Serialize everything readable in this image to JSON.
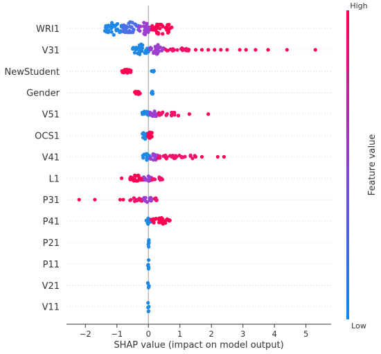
{
  "chart_data": {
    "type": "scatter",
    "subtype": "shap-beeswarm",
    "title": "",
    "xlabel": "SHAP value (impact on model output)",
    "xlim": [
      -2.6,
      5.8
    ],
    "xticks": [
      -2,
      -1,
      0,
      1,
      2,
      3,
      4,
      5
    ],
    "colorbar": {
      "label": "Feature value",
      "high_label": "High",
      "low_label": "Low",
      "high_color": "#ff0052",
      "low_color": "#008bfb"
    },
    "features": [
      {
        "name": "WRI1",
        "spread": 1.0,
        "groups": [
          {
            "min": -1.4,
            "max": -0.8,
            "color": "low"
          },
          {
            "min": -0.8,
            "max": -0.3,
            "color": "mid-low"
          },
          {
            "min": -0.3,
            "max": 0.1,
            "color": "mid"
          },
          {
            "min": 0.1,
            "max": 0.75,
            "color": "high"
          }
        ],
        "outliers": []
      },
      {
        "name": "V31",
        "spread": 0.8,
        "groups": [
          {
            "min": -0.5,
            "max": 0.05,
            "color": "low"
          },
          {
            "min": 0.05,
            "max": 0.5,
            "color": "mid"
          },
          {
            "min": 0.5,
            "max": 1.3,
            "color": "high-thin"
          }
        ],
        "outliers": [
          1.5,
          1.7,
          1.9,
          2.1,
          2.3,
          2.5,
          2.9,
          3.1,
          3.4,
          3.8,
          4.4,
          5.3
        ]
      },
      {
        "name": "NewStudent",
        "spread": 0.3,
        "groups": [
          {
            "min": -0.85,
            "max": -0.55,
            "color": "high"
          },
          {
            "min": 0.1,
            "max": 0.18,
            "color": "low"
          }
        ],
        "outliers": []
      },
      {
        "name": "Gender",
        "spread": 0.3,
        "groups": [
          {
            "min": -0.45,
            "max": -0.25,
            "color": "high"
          },
          {
            "min": 0.08,
            "max": 0.15,
            "color": "low"
          }
        ],
        "outliers": []
      },
      {
        "name": "V51",
        "spread": 0.55,
        "groups": [
          {
            "min": -0.2,
            "max": 0.05,
            "color": "low"
          },
          {
            "min": 0.05,
            "max": 0.3,
            "color": "mid"
          },
          {
            "min": 0.3,
            "max": 1.0,
            "color": "high-thin"
          }
        ],
        "outliers": [
          1.3,
          1.9
        ]
      },
      {
        "name": "OCS1",
        "spread": 0.6,
        "groups": [
          {
            "min": -0.2,
            "max": -0.02,
            "color": "low"
          },
          {
            "min": -0.02,
            "max": 0.15,
            "color": "high"
          }
        ],
        "outliers": []
      },
      {
        "name": "V41",
        "spread": 0.6,
        "groups": [
          {
            "min": -0.2,
            "max": 0.05,
            "color": "low"
          },
          {
            "min": 0.05,
            "max": 0.3,
            "color": "mid"
          },
          {
            "min": 0.3,
            "max": 1.5,
            "color": "high-thin"
          }
        ],
        "outliers": [
          1.5,
          1.7,
          2.2,
          2.4
        ]
      },
      {
        "name": "L1",
        "spread": 0.5,
        "groups": [
          {
            "min": -0.6,
            "max": -0.15,
            "color": "high"
          },
          {
            "min": -0.15,
            "max": 0.1,
            "color": "mid"
          },
          {
            "min": 0.1,
            "max": 0.45,
            "color": "high-thin"
          }
        ],
        "outliers": [
          -0.85
        ]
      },
      {
        "name": "P31",
        "spread": 0.55,
        "groups": [
          {
            "min": -0.6,
            "max": -0.15,
            "color": "high-thin"
          },
          {
            "min": -0.15,
            "max": 0.1,
            "color": "mid"
          },
          {
            "min": 0.1,
            "max": 0.3,
            "color": "high-thin"
          }
        ],
        "outliers": [
          -2.2,
          -1.7,
          -0.9,
          -0.8
        ]
      },
      {
        "name": "P41",
        "spread": 0.5,
        "groups": [
          {
            "min": -0.08,
            "max": 0.08,
            "color": "low"
          },
          {
            "min": 0.08,
            "max": 0.7,
            "color": "high"
          }
        ],
        "outliers": []
      },
      {
        "name": "P21",
        "spread": 0.9,
        "groups": [
          {
            "min": -0.02,
            "max": 0.02,
            "color": "low"
          }
        ],
        "outliers": []
      },
      {
        "name": "P11",
        "spread": 0.9,
        "groups": [
          {
            "min": -0.02,
            "max": 0.02,
            "color": "low"
          }
        ],
        "outliers": []
      },
      {
        "name": "V21",
        "spread": 0.9,
        "groups": [
          {
            "min": -0.02,
            "max": 0.02,
            "color": "low"
          }
        ],
        "outliers": []
      },
      {
        "name": "V11",
        "spread": 0.9,
        "groups": [
          {
            "min": -0.02,
            "max": 0.02,
            "color": "low"
          }
        ],
        "outliers": []
      }
    ]
  }
}
